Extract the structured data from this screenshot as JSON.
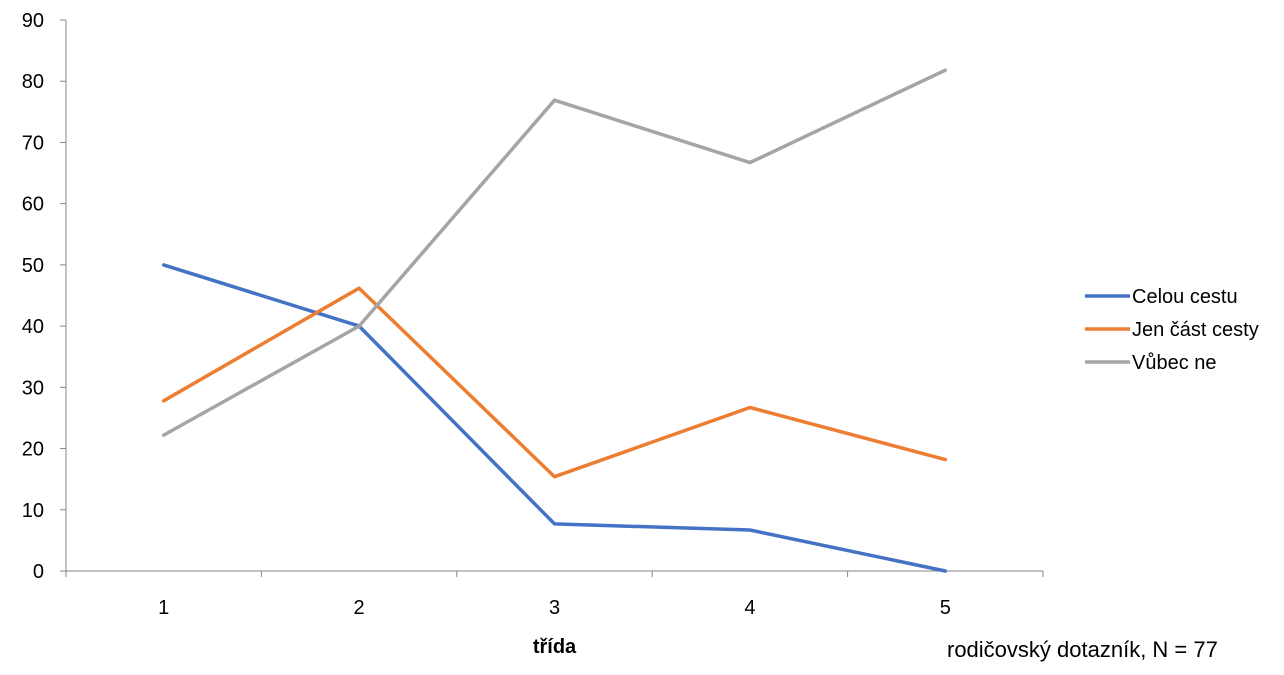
{
  "chart_data": {
    "type": "line",
    "x": [
      "1",
      "2",
      "3",
      "4",
      "5"
    ],
    "xlabel": "třída",
    "ylabel": "",
    "ylim": [
      0,
      90
    ],
    "yticks": [
      0,
      10,
      20,
      30,
      40,
      50,
      60,
      70,
      80,
      90
    ],
    "grid": false,
    "legend_position": "right",
    "series": [
      {
        "name": "Celou cestu",
        "color": "#4472C4",
        "values": [
          50,
          40,
          7.7,
          6.7,
          0
        ]
      },
      {
        "name": "Jen část cesty",
        "color": "#ED7D31",
        "values": [
          27.8,
          46.2,
          15.4,
          26.7,
          18.2
        ]
      },
      {
        "name": "Vůbec ne",
        "color": "#A5A5A5",
        "values": [
          22.2,
          40,
          76.9,
          66.7,
          81.8
        ]
      }
    ]
  },
  "note": "rodičovský dotazník, N = 77"
}
